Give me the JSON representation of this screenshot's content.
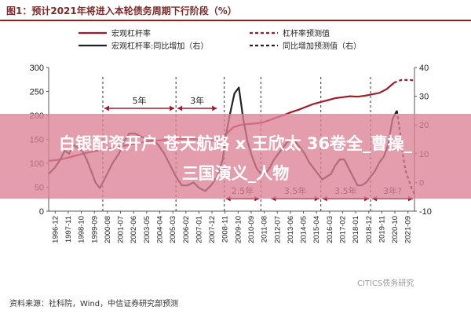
{
  "title": "图1：预计2021年将进入本轮债务周期下行阶段（%）",
  "source": "资料来源：社科院，Wind，中信证券研究部预测",
  "watermark": "CITICS债务研究",
  "overlay": {
    "line1": "白银配资开户 苍天航路 x 王欣太 36卷全_曹操_",
    "line2": "三国演义_人物"
  },
  "colors": {
    "leverage": "#a01c2c",
    "yoy": "#222222",
    "title_rule": "#9b1c1c",
    "arrow": "#a01c2c",
    "overlay": "#dd8296"
  },
  "chart_data": {
    "type": "line",
    "legend": [
      {
        "label": "宏观杠杆率",
        "style": "solid",
        "color": "#a01c2c"
      },
      {
        "label": "杠杆率预测值",
        "style": "dashed",
        "color": "#a01c2c"
      },
      {
        "label": "宏观杠杆率:同比增加（右）",
        "style": "solid",
        "color": "#222222"
      },
      {
        "label": "同比增加预测值（右）",
        "style": "dashed",
        "color": "#222222"
      }
    ],
    "legend_position": "top",
    "y_left": {
      "range": [
        0,
        300
      ],
      "ticks": [
        "0",
        "50",
        "100",
        "150",
        "200",
        "250",
        "300"
      ]
    },
    "y_right": {
      "range": [
        -10,
        40
      ],
      "ticks": [
        "-10",
        "0",
        "10",
        "20",
        "30",
        "40"
      ]
    },
    "x_ticks": [
      "1996-12",
      "1997-11",
      "1998-10",
      "1999-09",
      "2000-08",
      "2001-07",
      "2002-06",
      "2003-05",
      "2004-04",
      "2005-03",
      "2006-02",
      "2007-01",
      "2007-12",
      "2008-11",
      "2009-10",
      "2010-09",
      "2011-08",
      "2012-07",
      "2013-06",
      "2014-05",
      "2015-04",
      "2016-03",
      "2017-02",
      "2018-01",
      "2018-12",
      "2019-11",
      "2020-10",
      "2021-09"
    ],
    "x_range": [
      1996.9,
      2021.9
    ],
    "series": [
      {
        "name": "宏观杠杆率",
        "axis": "left",
        "x": [
          1996.9,
          1997.5,
          1998.0,
          1998.5,
          1999.0,
          1999.5,
          2000.0,
          2000.5,
          2001.0,
          2001.5,
          2002.0,
          2002.5,
          2003.0,
          2003.5,
          2004.0,
          2004.5,
          2005.0,
          2005.5,
          2006.0,
          2006.5,
          2007.0,
          2007.5,
          2008.0,
          2008.5,
          2009.0,
          2009.5,
          2010.0,
          2010.5,
          2011.0,
          2011.5,
          2012.0,
          2012.5,
          2013.0,
          2013.5,
          2014.0,
          2014.5,
          2015.0,
          2015.5,
          2016.0,
          2016.5,
          2017.0,
          2017.5,
          2018.0,
          2018.5,
          2019.0,
          2019.5,
          2020.0,
          2020.5
        ],
        "values": [
          105,
          107,
          110,
          114,
          118,
          122,
          125,
          128,
          130,
          133,
          136,
          139,
          142,
          145,
          147,
          148,
          149,
          150,
          151,
          151,
          150,
          149,
          148,
          150,
          160,
          175,
          180,
          182,
          183,
          185,
          190,
          196,
          201,
          207,
          212,
          218,
          224,
          228,
          232,
          236,
          238,
          240,
          239,
          241,
          244,
          247,
          255,
          268
        ]
      },
      {
        "name": "杠杆率预测值",
        "axis": "left",
        "x": [
          2020.5,
          2020.8,
          2021.0,
          2021.3,
          2021.6,
          2021.9
        ],
        "values": [
          268,
          272,
          274,
          274,
          274,
          273
        ]
      },
      {
        "name": "宏观杠杆率:同比增加（右）",
        "axis": "right",
        "x": [
          1996.9,
          1997.3,
          1997.7,
          1998.0,
          1998.3,
          1998.6,
          1998.9,
          1999.2,
          1999.5,
          1999.8,
          2000.1,
          2000.4,
          2000.7,
          2001.0,
          2001.3,
          2001.7,
          2002.0,
          2002.4,
          2002.8,
          2003.2,
          2003.6,
          2004.0,
          2004.4,
          2004.8,
          2005.2,
          2005.6,
          2006.0,
          2006.4,
          2006.8,
          2007.2,
          2007.6,
          2008.0,
          2008.4,
          2008.8,
          2009.0,
          2009.3,
          2009.6,
          2009.9,
          2010.2,
          2010.5,
          2010.8,
          2011.1,
          2011.4,
          2011.7,
          2012.0,
          2012.3,
          2012.6,
          2012.9,
          2013.2,
          2013.5,
          2013.8,
          2014.1,
          2014.4,
          2014.7,
          2015.0,
          2015.3,
          2015.6,
          2015.9,
          2016.2,
          2016.5,
          2016.8,
          2017.1,
          2017.4,
          2017.7,
          2018.0,
          2018.3,
          2018.6,
          2018.9,
          2019.2,
          2019.5,
          2019.8,
          2020.1,
          2020.4,
          2020.7
        ],
        "values": [
          3,
          5,
          8,
          11,
          10,
          13,
          12,
          11,
          8,
          4,
          0,
          -2,
          1,
          4,
          7,
          10,
          14,
          17,
          17,
          16,
          15,
          15,
          13,
          10,
          6,
          2,
          -1,
          -1,
          0,
          -2,
          -3,
          -1,
          2,
          8,
          16,
          24,
          31,
          33,
          22,
          14,
          9,
          5,
          3,
          3,
          5,
          8,
          10,
          12,
          14,
          15,
          14,
          12,
          10,
          7,
          5,
          3,
          1,
          2,
          3,
          6,
          8,
          8,
          5,
          2,
          -1,
          -1,
          0,
          2,
          4,
          7,
          9,
          13,
          22,
          25
        ]
      },
      {
        "name": "同比增加预测值（右）",
        "axis": "right",
        "x": [
          2020.7,
          2020.9,
          2021.1,
          2021.3,
          2021.5,
          2021.7,
          2021.9
        ],
        "values": [
          25,
          18,
          10,
          4,
          1,
          -2,
          -4
        ]
      }
    ],
    "annotations": [
      {
        "text": "5年",
        "from": 2000.6,
        "to": 2005.6,
        "position": "upper"
      },
      {
        "text": "3年",
        "from": 2005.6,
        "to": 2008.5,
        "position": "upper"
      },
      {
        "text": "2.5年",
        "from": 2008.9,
        "to": 2011.4,
        "position": "lower"
      },
      {
        "text": "3.5年",
        "from": 2012.0,
        "to": 2015.5,
        "position": "lower"
      },
      {
        "text": "3.5年",
        "from": 2015.5,
        "to": 2018.9,
        "position": "lower"
      },
      {
        "text": "3年?",
        "from": 2018.9,
        "to": 2021.9,
        "position": "lower"
      }
    ],
    "cycle_markers": [
      2000.6,
      2005.6,
      2008.9,
      2011.4,
      2015.5,
      2018.9
    ]
  }
}
